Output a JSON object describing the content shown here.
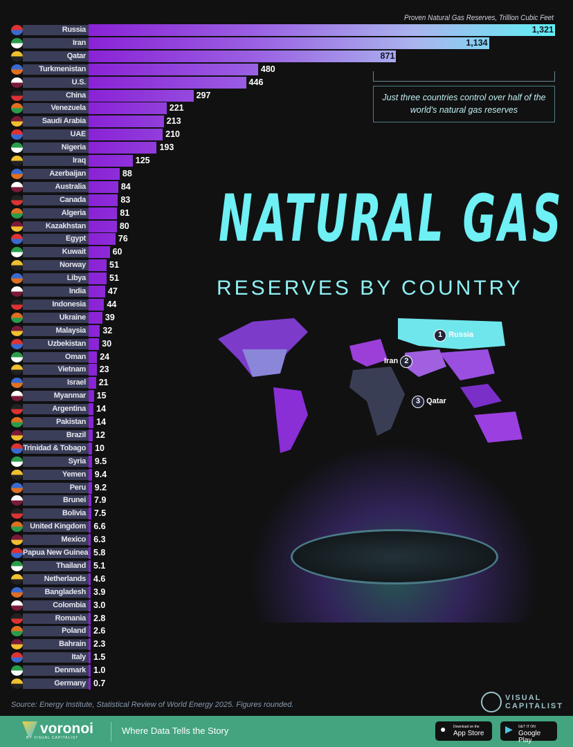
{
  "chart_data": {
    "type": "bar",
    "orientation": "horizontal",
    "title": "NATURAL GAS",
    "subtitle": "RESERVES BY COUNTRY",
    "unit_label": "Proven Natural Gas Reserves, Trillion Cubic Feet",
    "categories": [
      "Russia",
      "Iran",
      "Qatar",
      "Turkmenistan",
      "U.S.",
      "China",
      "Venezuela",
      "Saudi Arabia",
      "UAE",
      "Nigeria",
      "Iraq",
      "Azerbaijan",
      "Australia",
      "Canada",
      "Algeria",
      "Kazakhstan",
      "Egypt",
      "Kuwait",
      "Norway",
      "Libya",
      "India",
      "Indonesia",
      "Ukraine",
      "Malaysia",
      "Uzbekistan",
      "Oman",
      "Vietnam",
      "Israel",
      "Myanmar",
      "Argentina",
      "Pakistan",
      "Brazil",
      "Trinidad & Tobago",
      "Syria",
      "Yemen",
      "Peru",
      "Brunei",
      "Bolivia",
      "United Kingdom",
      "Mexico",
      "Papua New Guinea",
      "Thailand",
      "Netherlands",
      "Bangladesh",
      "Colombia",
      "Romania",
      "Poland",
      "Bahrain",
      "Italy",
      "Denmark",
      "Germany"
    ],
    "values": [
      1321,
      1134,
      871,
      480,
      446,
      297,
      221,
      213,
      210,
      193,
      125,
      88,
      84,
      83,
      81,
      80,
      76,
      60,
      51,
      51,
      47,
      44,
      39,
      32,
      30,
      24,
      23,
      21,
      15,
      14,
      14,
      12,
      10,
      9.5,
      9.4,
      9.2,
      7.9,
      7.5,
      6.6,
      6.3,
      5.8,
      5.1,
      4.6,
      3.9,
      3.0,
      2.8,
      2.6,
      2.3,
      1.5,
      1.0,
      0.7
    ],
    "value_labels": [
      "1,321",
      "1,134",
      "871",
      "480",
      "446",
      "297",
      "221",
      "213",
      "210",
      "193",
      "125",
      "88",
      "84",
      "83",
      "81",
      "80",
      "76",
      "60",
      "51",
      "51",
      "47",
      "44",
      "39",
      "32",
      "30",
      "24",
      "23",
      "21",
      "15",
      "14",
      "14",
      "12",
      "10",
      "9.5",
      "9.4",
      "9.2",
      "7.9",
      "7.5",
      "6.6",
      "6.3",
      "5.8",
      "5.1",
      "4.6",
      "3.9",
      "3.0",
      "2.8",
      "2.6",
      "2.3",
      "1.5",
      "1.0",
      "0.7"
    ],
    "xlim": [
      0,
      1321
    ],
    "grid": false
  },
  "callout": "Just three countries control over half of the world's natural gas reserves",
  "map_labels": [
    {
      "rank": "1",
      "name": "Russia"
    },
    {
      "rank": "2",
      "name": "Iran"
    },
    {
      "rank": "3",
      "name": "Qatar"
    }
  ],
  "source": "Source: Energy Institute, Statistical Review of World Energy 2025. Figures rounded.",
  "brand": {
    "line1": "VISUAL",
    "line2": "CAPITALIST"
  },
  "footer": {
    "logo": "voronoi",
    "logo_by": "BY VISUAL CAPITALIST",
    "tagline": "Where Data Tells the Story",
    "app_store_small": "Download on the",
    "app_store": "App Store",
    "google_small": "GET IT ON",
    "google": "Google Play"
  },
  "colors": {
    "bar_start": "#8a22d6",
    "bar_end": "#5ff0f5",
    "title": "#6ef0f4",
    "footer": "#43a47f",
    "label_bg": "#3b3e58"
  }
}
